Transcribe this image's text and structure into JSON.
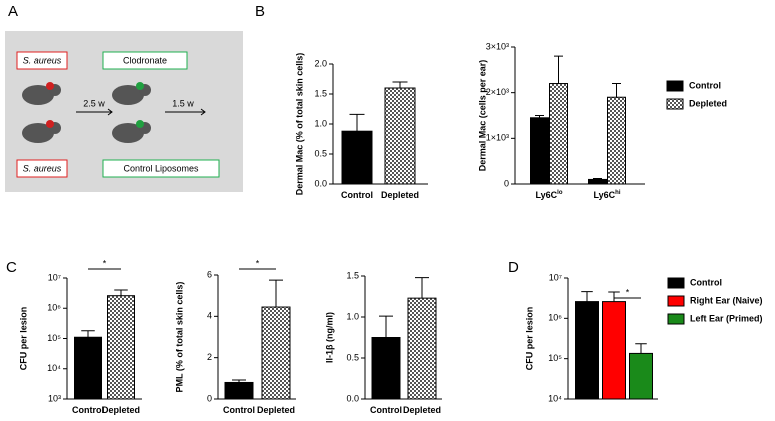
{
  "panel_labels": [
    "A",
    "B",
    "C",
    "D"
  ],
  "diagram": {
    "top_left": "S. aureus",
    "top_right": "Clodronate",
    "step1": "2.5 w",
    "step2": "1.5 w",
    "bottom_left": "S. aureus",
    "bottom_right": "Control Liposomes"
  },
  "chart_data": [
    {
      "type": "bar",
      "y_label": "Dermal Mac (% of total skin cells)",
      "categories": [
        "Control",
        "Depleted"
      ],
      "values": [
        0.88,
        1.6
      ],
      "errors": [
        0.28,
        0.1
      ],
      "colors": [
        "#000000",
        "#000000"
      ],
      "fills": [
        "solid",
        "checker"
      ],
      "ylim": [
        0,
        2
      ],
      "yticks": [
        {
          "value": 0,
          "label": "0.0"
        },
        {
          "value": 0.5,
          "label": "0.5"
        },
        {
          "value": 1,
          "label": "1.0"
        },
        {
          "value": 1.5,
          "label": "1.5"
        },
        {
          "value": 2,
          "label": "2.0"
        }
      ]
    },
    {
      "type": "bar",
      "y_label": "Dermal Mac (cells per ear)",
      "categories": [
        "Ly6C",
        "Ly6C"
      ],
      "category_superscripts": [
        "lo",
        "hi"
      ],
      "series": [
        {
          "name": "Control",
          "color": "#000000",
          "fill": "solid",
          "values": [
            1450,
            100
          ],
          "errors": [
            50,
            20
          ]
        },
        {
          "name": "Depleted",
          "color": "#000000",
          "fill": "checker",
          "values": [
            2200,
            1900
          ],
          "errors": [
            600,
            300
          ]
        }
      ],
      "ylim": [
        0,
        3000
      ],
      "yticks": [
        0,
        {
          "value": 1000,
          "label": "1×10³"
        },
        {
          "value": 2000,
          "label": "2×10³"
        },
        {
          "value": 3000,
          "label": "3×10³"
        }
      ],
      "legend": "right"
    },
    {
      "type": "bar",
      "y_label": "CFU per lesion",
      "log_scale": true,
      "categories": [
        "Control",
        "Depleted"
      ],
      "values": [
        110000,
        2600000
      ],
      "errors": [
        70000,
        1400000
      ],
      "colors": [
        "#000000",
        "#000000"
      ],
      "fills": [
        "solid",
        "checker"
      ],
      "ylim": [
        1000,
        10000000
      ],
      "yticks": [
        {
          "value": 1000,
          "label": "10³"
        },
        {
          "value": 10000,
          "label": "10⁴"
        },
        {
          "value": 100000,
          "label": "10⁵"
        },
        {
          "value": 1000000,
          "label": "10⁶"
        },
        {
          "value": 10000000,
          "label": "10⁷"
        }
      ],
      "significance": "*"
    },
    {
      "type": "bar",
      "y_label": "PML (% of total skin cells)",
      "categories": [
        "Control",
        "Depleted"
      ],
      "values": [
        0.8,
        4.45
      ],
      "errors": [
        0.12,
        1.3
      ],
      "colors": [
        "#000000",
        "#000000"
      ],
      "fills": [
        "solid",
        "checker"
      ],
      "ylim": [
        0,
        6
      ],
      "yticks": [
        0,
        2,
        4,
        6
      ],
      "significance": "*"
    },
    {
      "type": "bar",
      "y_label": "Il-1β (ng/ml)",
      "categories": [
        "Control",
        "Depleted"
      ],
      "values": [
        0.75,
        1.23
      ],
      "errors": [
        0.26,
        0.25
      ],
      "colors": [
        "#000000",
        "#000000"
      ],
      "fills": [
        "solid",
        "checker"
      ],
      "ylim": [
        0,
        1.5
      ],
      "yticks": [
        {
          "value": 0,
          "label": "0.0"
        },
        {
          "value": 0.5,
          "label": "0.5"
        },
        {
          "value": 1,
          "label": "1.0"
        },
        {
          "value": 1.5,
          "label": "1.5"
        }
      ]
    },
    {
      "type": "bar",
      "y_label": "CFU per lesion",
      "log_scale": true,
      "categories": [
        null
      ],
      "series": [
        {
          "name": "Control",
          "color": "#000000",
          "fill": "solid",
          "values": [
            2600000
          ],
          "errors": [
            2000000
          ]
        },
        {
          "name": "Right Ear (Naive)",
          "color": "#ff0000",
          "fill": "solid",
          "values": [
            2600000
          ],
          "errors": [
            1900000
          ]
        },
        {
          "name": "Left Ear (Primed)",
          "color": "#1a8a1a",
          "fill": "solid",
          "values": [
            135000
          ],
          "errors": [
            100000
          ]
        }
      ],
      "ylim": [
        10000,
        10000000
      ],
      "yticks": [
        {
          "value": 10000,
          "label": "10⁴"
        },
        {
          "value": 100000,
          "label": "10⁵"
        },
        {
          "value": 1000000,
          "label": "10⁶"
        },
        {
          "value": 10000000,
          "label": "10⁷"
        }
      ],
      "legend": "right",
      "significance": "*"
    }
  ]
}
